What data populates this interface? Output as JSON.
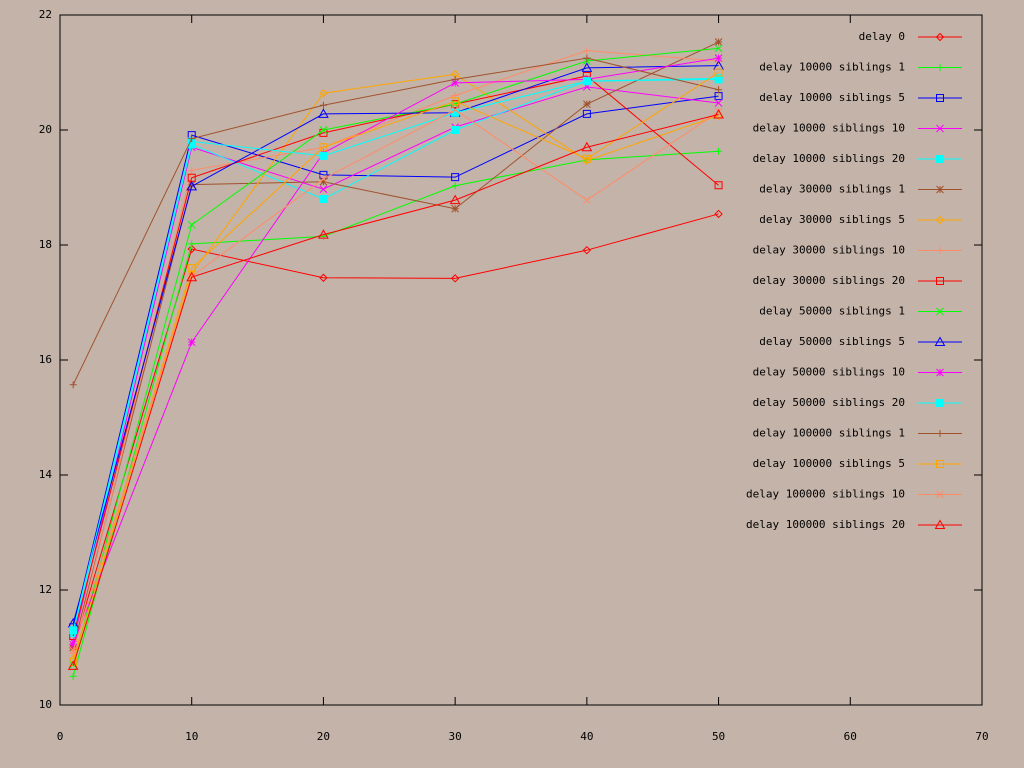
{
  "chart_data": {
    "type": "line",
    "x": [
      1,
      10,
      20,
      30,
      40,
      50
    ],
    "xlim": [
      0,
      70
    ],
    "xticks": [
      0,
      10,
      20,
      30,
      40,
      50,
      60,
      70
    ],
    "ylim": [
      10,
      22
    ],
    "yticks": [
      10,
      12,
      14,
      16,
      18,
      20,
      22
    ],
    "grid": false,
    "legend": "top-right",
    "series": [
      {
        "name": "delay 0",
        "color": "#ff0000",
        "marker": "diamond",
        "values": [
          11.0,
          17.93,
          17.43,
          17.42,
          17.91,
          18.54
        ]
      },
      {
        "name": "delay 10000 siblings 1",
        "color": "#00ff00",
        "marker": "plus",
        "values": [
          10.5,
          18.02,
          18.15,
          19.03,
          19.48,
          19.63
        ]
      },
      {
        "name": "delay 10000 siblings 5",
        "color": "#0000ff",
        "marker": "square",
        "values": [
          11.35,
          19.91,
          19.22,
          19.18,
          20.28,
          20.59
        ]
      },
      {
        "name": "delay 10000 siblings 10",
        "color": "#ff00ff",
        "marker": "cross",
        "values": [
          11.1,
          19.7,
          18.97,
          20.05,
          20.75,
          20.47
        ]
      },
      {
        "name": "delay 10000 siblings 20",
        "color": "#00ffff",
        "marker": "filledsquare",
        "values": [
          11.25,
          19.75,
          18.8,
          20.0,
          20.85,
          20.88
        ]
      },
      {
        "name": "delay 30000 siblings 1",
        "color": "#a0522d",
        "marker": "star",
        "values": [
          11.0,
          19.05,
          19.1,
          18.63,
          20.45,
          21.53
        ]
      },
      {
        "name": "delay 30000 siblings 5",
        "color": "#ffa500",
        "marker": "diamond",
        "values": [
          10.8,
          17.5,
          20.64,
          20.97,
          19.47,
          20.25
        ]
      },
      {
        "name": "delay 30000 siblings 10",
        "color": "#ff8c69",
        "marker": "plus",
        "values": [
          10.9,
          19.3,
          19.7,
          20.6,
          21.38,
          21.2
        ]
      },
      {
        "name": "delay 30000 siblings 20",
        "color": "#ff0000",
        "marker": "square",
        "values": [
          11.2,
          19.17,
          19.95,
          20.45,
          20.94,
          19.04
        ]
      },
      {
        "name": "delay 50000 siblings 1",
        "color": "#00ff00",
        "marker": "cross",
        "values": [
          10.7,
          18.35,
          20.0,
          20.45,
          21.2,
          21.42
        ]
      },
      {
        "name": "delay 50000 siblings 5",
        "color": "#0000ff",
        "marker": "triangle",
        "values": [
          11.42,
          19.02,
          20.28,
          20.3,
          21.08,
          21.12
        ]
      },
      {
        "name": "delay 50000 siblings 10",
        "color": "#ff00ff",
        "marker": "star",
        "values": [
          11.05,
          16.31,
          19.6,
          20.82,
          20.88,
          21.25
        ]
      },
      {
        "name": "delay 50000 siblings 20",
        "color": "#00ffff",
        "marker": "filledsquare",
        "values": [
          11.3,
          19.8,
          19.55,
          20.3,
          20.85,
          20.9
        ]
      },
      {
        "name": "delay 100000 siblings 1",
        "color": "#a0522d",
        "marker": "plus",
        "values": [
          15.57,
          19.85,
          20.43,
          20.88,
          21.25,
          20.7
        ]
      },
      {
        "name": "delay 100000 siblings 5",
        "color": "#ffa500",
        "marker": "square",
        "values": [
          10.75,
          17.6,
          19.7,
          20.5,
          19.5,
          21.0
        ]
      },
      {
        "name": "delay 100000 siblings 10",
        "color": "#ff8c69",
        "marker": "cross",
        "values": [
          10.95,
          17.45,
          19.15,
          20.35,
          18.78,
          20.32
        ]
      },
      {
        "name": "delay 100000 siblings 20",
        "color": "#ff0000",
        "marker": "triangle",
        "values": [
          10.68,
          17.44,
          18.18,
          18.78,
          19.7,
          20.27
        ]
      }
    ]
  }
}
